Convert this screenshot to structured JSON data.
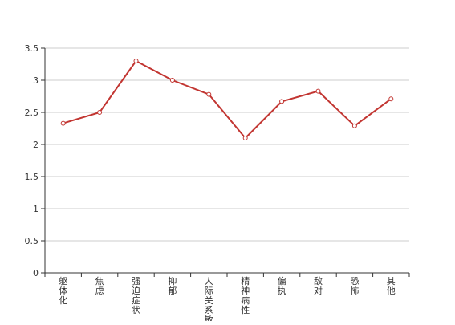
{
  "chart_data": {
    "type": "line",
    "title": "",
    "xlabel": "",
    "ylabel": "",
    "categories": [
      "躯体化",
      "焦虑",
      "强迫症状",
      "抑郁",
      "人际关系敏感",
      "精神病性",
      "偏执",
      "敌对",
      "恐怖",
      "其他"
    ],
    "series": [
      {
        "values": [
          2.33,
          2.5,
          3.3,
          3.0,
          2.78,
          2.1,
          2.67,
          2.83,
          2.29,
          2.71
        ]
      }
    ],
    "ylim": [
      0,
      3.5
    ],
    "yticks": [
      "0",
      "0.5",
      "1",
      "1.5",
      "2",
      "2.5",
      "3",
      "3.5"
    ],
    "grid": true,
    "legend": "none",
    "colors": {
      "line": "#c23531",
      "grid": "#cccccc",
      "axis": "#333333"
    }
  }
}
